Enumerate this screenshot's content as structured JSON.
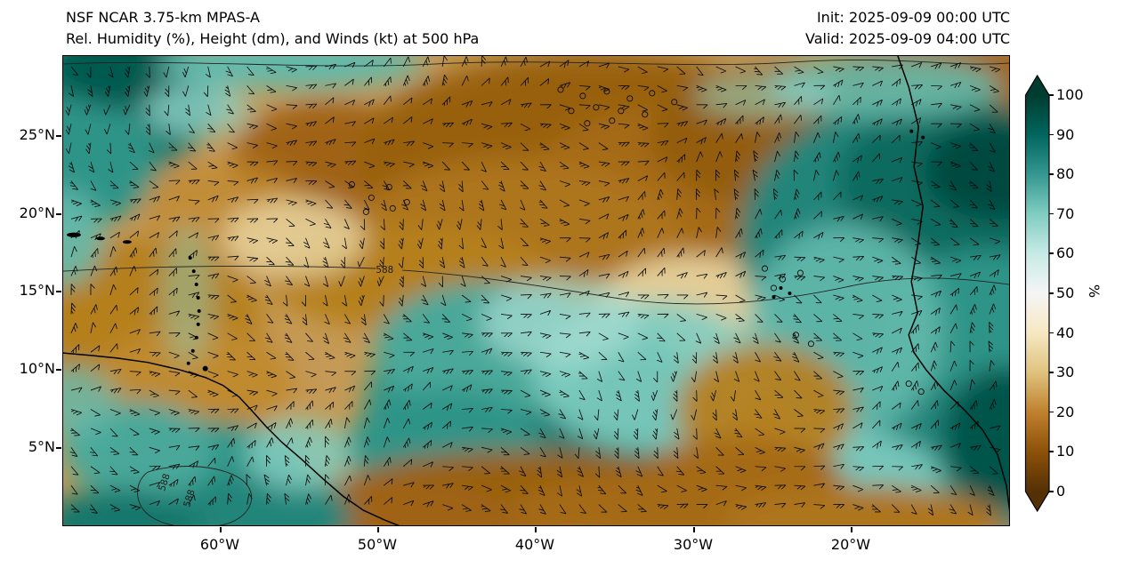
{
  "header": {
    "model": "NSF NCAR 3.75-km MPAS-A",
    "subtitle": "Rel. Humidity (%), Height (dm), and Winds (kt) at 500 hPa",
    "init": "Init: 2025-09-09 00:00 UTC",
    "valid": "Valid: 2025-09-09 04:00 UTC"
  },
  "chart_data": {
    "type": "heatmap",
    "title": "Rel. Humidity (%), Height (dm), and Winds (kt) at 500 hPa",
    "model": "NSF NCAR 3.75-km MPAS-A",
    "init_time": "2025-09-09 00:00 UTC",
    "valid_time": "2025-09-09 04:00 UTC",
    "level_hPa": 500,
    "field": "Relative Humidity",
    "units": "%",
    "overlays": [
      "Height (dm) contours",
      "Wind barbs (kt)",
      "Calm-wind circles",
      "Coastlines"
    ],
    "x_axis": {
      "ticks": [
        "60°W",
        "50°W",
        "40°W",
        "30°W",
        "20°W"
      ],
      "range": [
        "~70°W",
        "~10°W"
      ]
    },
    "y_axis": {
      "ticks": [
        "25°N",
        "20°N",
        "15°N",
        "10°N",
        "5°N"
      ],
      "range": [
        "~0°N",
        "~30°N"
      ]
    },
    "colorbar": {
      "label": "%",
      "ticks": [
        0,
        10,
        20,
        30,
        40,
        50,
        60,
        70,
        80,
        90,
        100
      ],
      "colors": [
        "#543005",
        "#8c510a",
        "#bf812d",
        "#dfc27d",
        "#f6e8c3",
        "#f5f5f5",
        "#c7eae5",
        "#80cdc1",
        "#35978f",
        "#01665e",
        "#003c30"
      ],
      "extend_arrows": "both",
      "position": "right"
    },
    "height_contour_labels": [
      "588",
      "588",
      "588"
    ],
    "grid": "off",
    "notes": "Dry (brown) ridge across central subtropical Atlantic; moist (teal) air near Africa, ITCZ and western Caribbean; dry band along the equator near the bottom of the domain"
  }
}
